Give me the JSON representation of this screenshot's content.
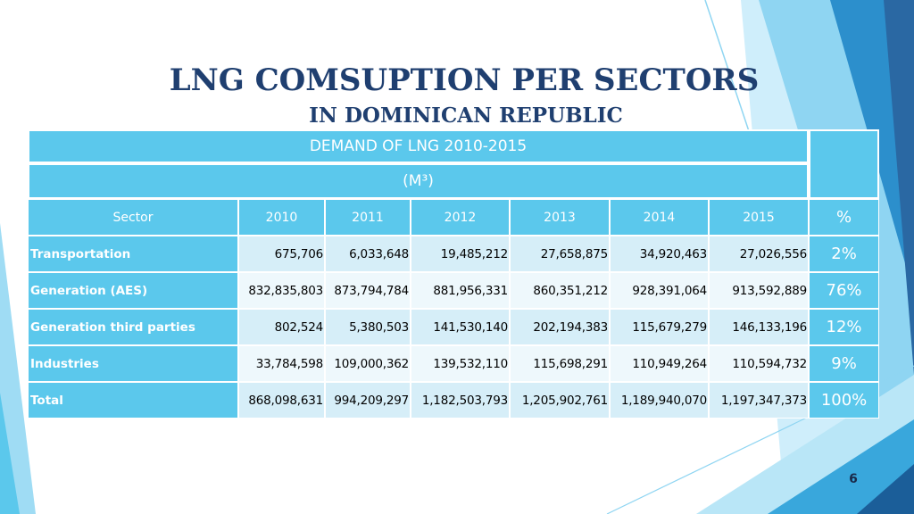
{
  "slide": {
    "title_line1": "LNG COMSUPTION PER SECTORS",
    "title_line2": "IN DOMINICAN REPUBLIC",
    "page_number": "6"
  },
  "table": {
    "header_title": "DEMAND OF LNG 2010-2015",
    "header_unit": "(M³)",
    "columns": [
      "Sector",
      "2010",
      "2011",
      "2012",
      "2013",
      "2014",
      "2015",
      "%"
    ],
    "rows": [
      {
        "sector": "Transportation",
        "values": [
          "675,706",
          "6,033,648",
          "19,485,212",
          "27,658,875",
          "34,920,463",
          "27,026,556"
        ],
        "pct": "2%"
      },
      {
        "sector": "Generation (AES)",
        "values": [
          "832,835,803",
          "873,794,784",
          "881,956,331",
          "860,351,212",
          "928,391,064",
          "913,592,889"
        ],
        "pct": "76%"
      },
      {
        "sector": "Generation third parties",
        "values": [
          "802,524",
          "5,380,503",
          "141,530,140",
          "202,194,383",
          "115,679,279",
          "146,133,196"
        ],
        "pct": "12%"
      },
      {
        "sector": "Industries",
        "values": [
          "33,784,598",
          "109,000,362",
          "139,532,110",
          "115,698,291",
          "110,949,264",
          "110,594,732"
        ],
        "pct": "9%"
      },
      {
        "sector": "Total",
        "values": [
          "868,098,631",
          "994,209,297",
          "1,182,503,793",
          "1,205,902,761",
          "1,189,940,070",
          "1,197,347,373"
        ],
        "pct": "100%"
      }
    ]
  },
  "colors": {
    "table_header": "#5bc8ec",
    "row_odd": "#d6eef8",
    "row_even": "#eef8fc",
    "title": "#1f3f70",
    "accent_dark_blue": "#2e6fa6",
    "accent_light_blue": "#8fd5f2"
  }
}
